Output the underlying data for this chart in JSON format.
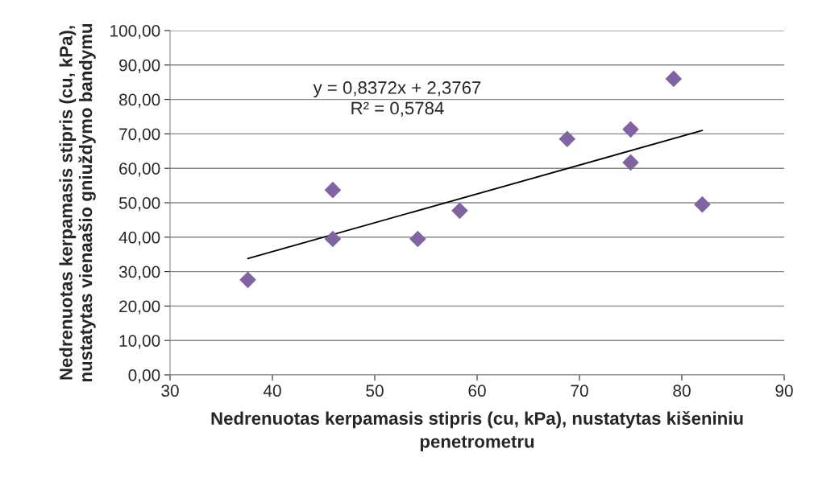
{
  "chart_data": {
    "type": "scatter",
    "xlabel": "Nedrenuotas kerpamasis stipris (cu, kPa), nustatytas kišeniniu\npenetrometru",
    "ylabel": "Nedrenuotas kerpamasis stipris (cu, kPa),\nnustatytas vienaašio gniuždymo bandymu",
    "series": [
      {
        "color": "#8064a2",
        "marker": "diamond",
        "x": [
          37.6,
          45.9,
          45.9,
          54.2,
          58.3,
          68.8,
          75,
          75,
          79.2,
          82
        ],
        "values": [
          27.6,
          53.7,
          39.5,
          39.5,
          47.7,
          68.5,
          71.3,
          61.7,
          86,
          49.5
        ]
      },
      {
        "type": "line",
        "color": "#000000",
        "x": [
          37.6,
          82
        ],
        "values": [
          33.8,
          71.0
        ]
      }
    ],
    "annotations": [
      "y = 0,8372x + 2,3767\nR² = 0,5784"
    ],
    "xlim": [
      30,
      90
    ],
    "xticks": [
      30,
      40,
      50,
      60,
      70,
      80,
      90
    ],
    "ylim": [
      0,
      100
    ],
    "yticks": [
      {
        "value": 0,
        "label": "0,00"
      },
      {
        "value": 10,
        "label": "10,00"
      },
      {
        "value": 20,
        "label": "20,00"
      },
      {
        "value": 30,
        "label": "30,00"
      },
      {
        "value": 40,
        "label": "40,00"
      },
      {
        "value": 50,
        "label": "50,00"
      },
      {
        "value": 60,
        "label": "60,00"
      },
      {
        "value": 70,
        "label": "70,00"
      },
      {
        "value": 80,
        "label": "80,00"
      },
      {
        "value": 90,
        "label": "90,00"
      },
      {
        "value": 100,
        "label": "100,00"
      }
    ],
    "grid": "y",
    "legend": false
  }
}
